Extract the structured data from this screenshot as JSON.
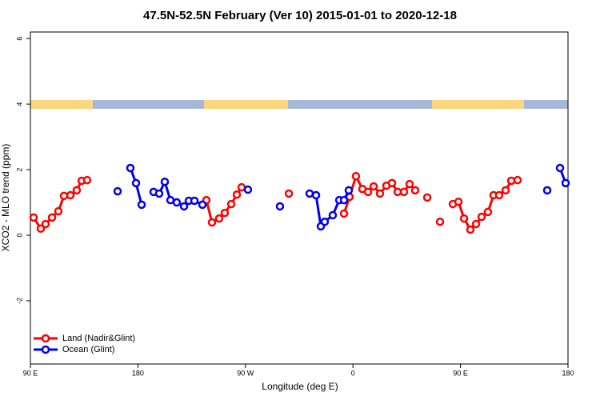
{
  "chart_data": {
    "type": "line",
    "title": "47.5N-52.5N February (Ver 10)   2015-01-01 to 2020-12-18",
    "x_label": "Longitude (deg E)",
    "y_label": "XCO2 - MLO trend (ppm)",
    "xlim": [
      90,
      540
    ],
    "ylim": [
      -3.93,
      6.2
    ],
    "xticks": [
      {
        "value": 90,
        "label": "90 E"
      },
      180,
      {
        "value": 270,
        "label": "90 W"
      },
      {
        "value": 360,
        "label": "0"
      },
      {
        "value": 450,
        "label": "90 E"
      },
      {
        "value": 540,
        "label": "180"
      }
    ],
    "yticks": [
      -2,
      0,
      2,
      4,
      6
    ],
    "legend": "bottom-left",
    "series": [
      {
        "name": "Land (Nadir&Glint)",
        "color": "#ff0000",
        "x": [
          92.7,
          98.7,
          102.7,
          108.1,
          113.4,
          118.1,
          123.5,
          128.8,
          132.9,
          137.5,
          null,
          237.3,
          242.0,
          248.0,
          252.7,
          258.1,
          262.8,
          266.8,
          null,
          306.3,
          null,
          352.5,
          357.2,
          362.5,
          367.9,
          372.6,
          377.3,
          382.6,
          388.0,
          392.7,
          397.4,
          402.7,
          407.4,
          412.1,
          null,
          422.2,
          null,
          432.9,
          null,
          443.6,
          448.3,
          453.0,
          458.3,
          463.0,
          467.7,
          473.0,
          477.7,
          482.4,
          487.8,
          492.5,
          497.8
        ],
        "values": [
          0.54,
          0.2,
          0.34,
          0.54,
          0.73,
          1.2,
          1.22,
          1.37,
          1.66,
          1.68,
          null,
          1.07,
          0.39,
          0.51,
          0.68,
          0.95,
          1.24,
          1.46,
          null,
          1.27,
          null,
          0.66,
          1.17,
          1.8,
          1.41,
          1.32,
          1.49,
          1.27,
          1.51,
          1.59,
          1.32,
          1.32,
          1.56,
          1.37,
          null,
          1.15,
          null,
          0.41,
          null,
          0.95,
          1.02,
          0.51,
          0.17,
          0.34,
          0.56,
          0.71,
          1.22,
          1.22,
          1.37,
          1.66,
          1.68
        ]
      },
      {
        "name": "Ocean (Glint)",
        "color": "#0000ee",
        "x": [
          163.0,
          null,
          173.7,
          178.4,
          183.1,
          null,
          193.1,
          197.8,
          202.5,
          207.2,
          212.5,
          218.6,
          222.6,
          227.3,
          234.0,
          null,
          272.1,
          null,
          298.9,
          null,
          323.7,
          329.1,
          333.1,
          336.4,
          343.1,
          348.5,
          352.5,
          356.5,
          null,
          522.6,
          null,
          533.3,
          538.0
        ],
        "values": [
          1.34,
          null,
          2.05,
          1.59,
          0.93,
          null,
          1.32,
          1.27,
          1.63,
          1.07,
          1.0,
          0.88,
          1.05,
          1.05,
          0.93,
          null,
          1.39,
          null,
          0.88,
          null,
          1.27,
          1.22,
          0.27,
          0.41,
          0.61,
          1.07,
          1.07,
          1.37,
          null,
          1.37,
          null,
          2.05,
          1.59
        ]
      }
    ]
  }
}
